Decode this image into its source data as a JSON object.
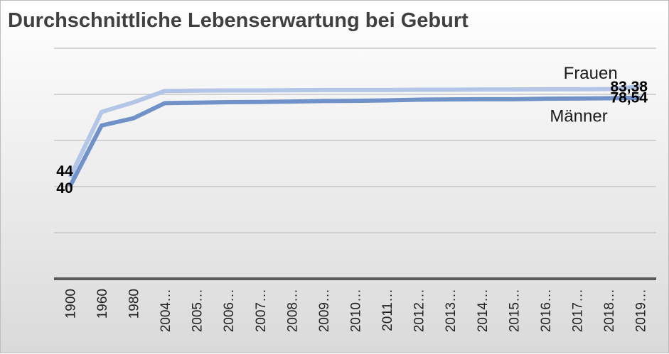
{
  "title": "Durchschnittliche Lebenserwartung bei Geburt",
  "colors": {
    "frauen": "#b4c6e7",
    "maenner": "#7092c8",
    "gridline": "#bfbfbf",
    "axis": "#595959"
  },
  "chart_data": {
    "type": "line",
    "title": "Durchschnittliche Lebenserwartung bei Geburt",
    "xlabel": "",
    "ylabel": "",
    "categories": [
      "1900",
      "1960",
      "1980",
      "2004…",
      "2005…",
      "2006…",
      "2007…",
      "2008…",
      "2009…",
      "2010…",
      "2011…",
      "2012…",
      "2013…",
      "2014…",
      "2015…",
      "2016…",
      "2017…",
      "2018…",
      "2019…"
    ],
    "ylim": [
      0,
      100
    ],
    "y_tick_values": [
      0,
      20,
      40,
      60,
      80,
      100
    ],
    "y_tick_labels_shown": false,
    "grid": true,
    "legend": "none (series labelled directly on lines)",
    "series": [
      {
        "name": "Frauen",
        "color_key": "frauen",
        "values": [
          44,
          72.4,
          76.5,
          81.5,
          81.6,
          81.7,
          81.7,
          81.8,
          81.9,
          81.9,
          81.9,
          82.0,
          82.0,
          82.1,
          82.1,
          82.2,
          82.2,
          82.3,
          83.38
        ]
      },
      {
        "name": "Männer",
        "color_key": "maenner",
        "values": [
          40,
          66.5,
          69.6,
          76.2,
          76.4,
          76.6,
          76.7,
          76.9,
          77.1,
          77.2,
          77.4,
          77.7,
          77.8,
          77.9,
          77.9,
          78.1,
          78.2,
          78.3,
          78.54
        ]
      }
    ],
    "data_labels": [
      {
        "series": "Frauen",
        "index": 0,
        "text": "44",
        "anchor": "start"
      },
      {
        "series": "Männer",
        "index": 0,
        "text": "40",
        "anchor": "start"
      },
      {
        "series": "Frauen",
        "index": 18,
        "text": "83,38",
        "anchor": "end"
      },
      {
        "series": "Männer",
        "index": 18,
        "text": "78,54",
        "anchor": "end"
      }
    ]
  }
}
